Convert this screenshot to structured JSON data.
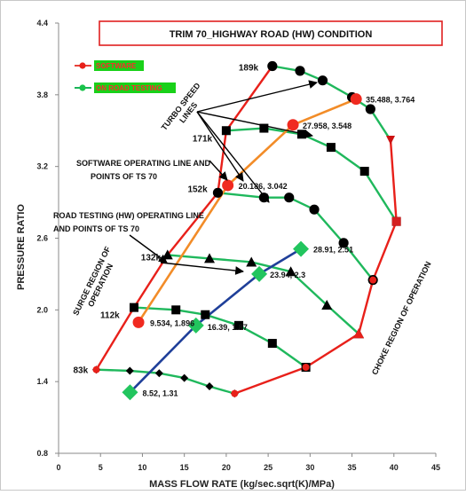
{
  "chart_data": {
    "type": "line",
    "title": "TRIM  70_HIGHWAY ROAD (HW) CONDITION",
    "xlabel": "MASS FLOW RATE (kg/sec.sqrt(K)/MPa)",
    "ylabel": "PRESSURE RATIO",
    "xlim": [
      0,
      45
    ],
    "ylim": [
      0.8,
      4.4
    ],
    "x_ticks": [
      0,
      5,
      10,
      15,
      20,
      25,
      30,
      35,
      40,
      45
    ],
    "y_ticks": [
      0.8,
      1.4,
      2.0,
      2.6,
      3.2,
      3.8,
      4.4
    ],
    "grid": false,
    "legend": {
      "placement": "top-left",
      "entries": [
        {
          "label": "SOFTWARE",
          "line_color": "#e8423a",
          "marker_color": "#e8201a",
          "box_color": "#19d119"
        },
        {
          "label": "ON ROAD TESTING",
          "line_color": "#1bb45a",
          "marker_color": "#19c34a",
          "box_color": "#19d119"
        }
      ]
    },
    "speed_lines": [
      {
        "label": "189k",
        "marker": "circle",
        "points": [
          [
            25.5,
            4.04
          ],
          [
            28.8,
            4.0
          ],
          [
            31.5,
            3.92
          ],
          [
            35,
            3.78
          ],
          [
            37.2,
            3.68
          ],
          [
            39.6,
            3.42
          ]
        ]
      },
      {
        "label": "171k",
        "marker": "square",
        "points": [
          [
            20,
            3.5
          ],
          [
            24.5,
            3.52
          ],
          [
            29,
            3.47
          ],
          [
            32.5,
            3.36
          ],
          [
            36.5,
            3.16
          ],
          [
            40.3,
            2.74
          ]
        ]
      },
      {
        "label": "152k",
        "marker": "circle",
        "points": [
          [
            19,
            2.98
          ],
          [
            24.5,
            2.94
          ],
          [
            27.5,
            2.94
          ],
          [
            30.5,
            2.84
          ],
          [
            34,
            2.56
          ],
          [
            37.5,
            2.25
          ]
        ]
      },
      {
        "label": "132k",
        "marker": "triangle",
        "points": [
          [
            13,
            2.46
          ],
          [
            18,
            2.43
          ],
          [
            23,
            2.4
          ],
          [
            27.7,
            2.32
          ],
          [
            32,
            2.04
          ],
          [
            35.8,
            1.8
          ]
        ]
      },
      {
        "label": "112k",
        "marker": "square",
        "points": [
          [
            9,
            2.02
          ],
          [
            14,
            2.0
          ],
          [
            17.5,
            1.96
          ],
          [
            21.5,
            1.87
          ],
          [
            25.5,
            1.72
          ],
          [
            29.5,
            1.52
          ]
        ]
      },
      {
        "label": "83k",
        "marker": "diamond",
        "points": [
          [
            4.5,
            1.5
          ],
          [
            8.5,
            1.49
          ],
          [
            12,
            1.47
          ],
          [
            15,
            1.43
          ],
          [
            18,
            1.36
          ],
          [
            21,
            1.3
          ]
        ]
      }
    ],
    "surge_line": {
      "label": "SURGE REGION OF OPERATION",
      "points": [
        [
          4.5,
          1.5
        ],
        [
          9,
          2.02
        ],
        [
          13,
          2.46
        ],
        [
          19,
          2.98
        ],
        [
          20,
          3.5
        ],
        [
          25.5,
          4.04
        ]
      ]
    },
    "choke_line": {
      "label": "CHOKE REGION OF OPERATION",
      "points": [
        [
          21,
          1.3
        ],
        [
          29.5,
          1.52
        ],
        [
          35.8,
          1.8
        ],
        [
          37.5,
          2.25
        ],
        [
          40.3,
          2.74
        ],
        [
          39.6,
          3.42
        ]
      ]
    },
    "series": [
      {
        "name": "SOFTWARE",
        "color": "#f28c28",
        "marker_color": "#f02a20",
        "points": [
          [
            9.534,
            1.896
          ],
          [
            20.186,
            3.042
          ],
          [
            27.958,
            3.548
          ],
          [
            35.488,
            3.764
          ]
        ]
      },
      {
        "name": "ON ROAD TESTING",
        "color": "#1f3f99",
        "marker_color": "#22c55e",
        "points": [
          [
            8.52,
            1.31
          ],
          [
            16.39,
            1.87
          ],
          [
            23.94,
            2.3
          ],
          [
            28.91,
            2.51
          ]
        ]
      }
    ],
    "data_labels": [
      "35.488, 3.764",
      "27.958, 3.548",
      "20.186, 3.042",
      "9.534, 1.896",
      "28.91, 2.51",
      "23.94, 2.3",
      "16.39, 1.87",
      "8.52, 1.31"
    ],
    "annotations": [
      {
        "text": "TURBO SPEED LINES",
        "lines": [
          "TURBO SPEED",
          "LINES"
        ]
      },
      {
        "text": "SOFTWARE OPERATING LINE AND POINTS OF TS 70",
        "lines": [
          "SOFTWARE  OPERATING LINE AND",
          "POINTS  OF TS 70"
        ]
      },
      {
        "text": "ROAD TESTING (HW) OPERATING LINE AND POINTS OF TS 70",
        "lines": [
          "ROAD TESTING (HW)  OPERATING  LINE",
          "AND POINTS OF TS 70"
        ]
      },
      {
        "text": "SURGE REGION OF OPERATION",
        "lines": [
          "SURGE REGION OF",
          "OPERATION"
        ]
      },
      {
        "text": "CHOKE REGION OF OPERATION",
        "lines": [
          "CHOKE REGION OF OPERATION"
        ]
      }
    ]
  }
}
